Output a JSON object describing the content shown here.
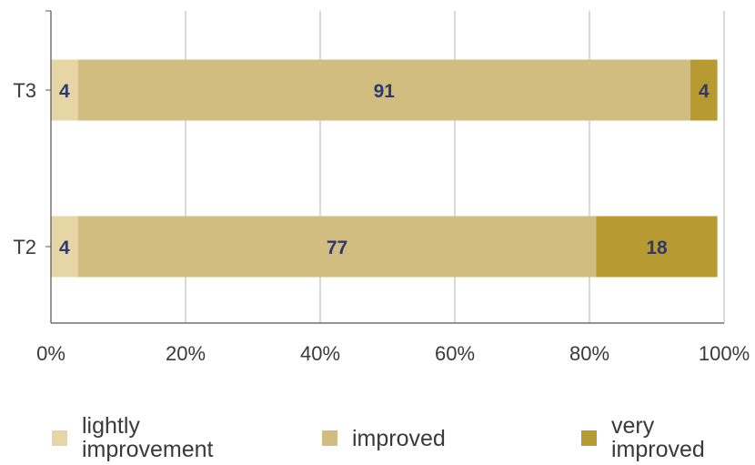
{
  "chart_data": {
    "type": "bar",
    "orientation": "horizontal",
    "stacked": true,
    "title": "",
    "xlabel": "",
    "ylabel": "",
    "categories": [
      "T3",
      "T2"
    ],
    "series": [
      {
        "name": "lightly improvement",
        "legend_lines": [
          "lightly",
          "improvement"
        ],
        "color": "#e6d6a6",
        "values": [
          4,
          4
        ]
      },
      {
        "name": "improved",
        "legend_lines": [
          "improved"
        ],
        "color": "#d2bd80",
        "values": [
          91,
          77
        ]
      },
      {
        "name": "very improved",
        "legend_lines": [
          "very",
          "improved"
        ],
        "color": "#b89a33",
        "values": [
          4,
          18
        ]
      }
    ],
    "xlim": [
      0,
      100
    ],
    "xticks": [
      0,
      20,
      40,
      60,
      80,
      100
    ],
    "xtick_labels": [
      "0%",
      "20%",
      "40%",
      "60%",
      "80%",
      "100%"
    ],
    "grid": true,
    "legend_position": "bottom"
  }
}
